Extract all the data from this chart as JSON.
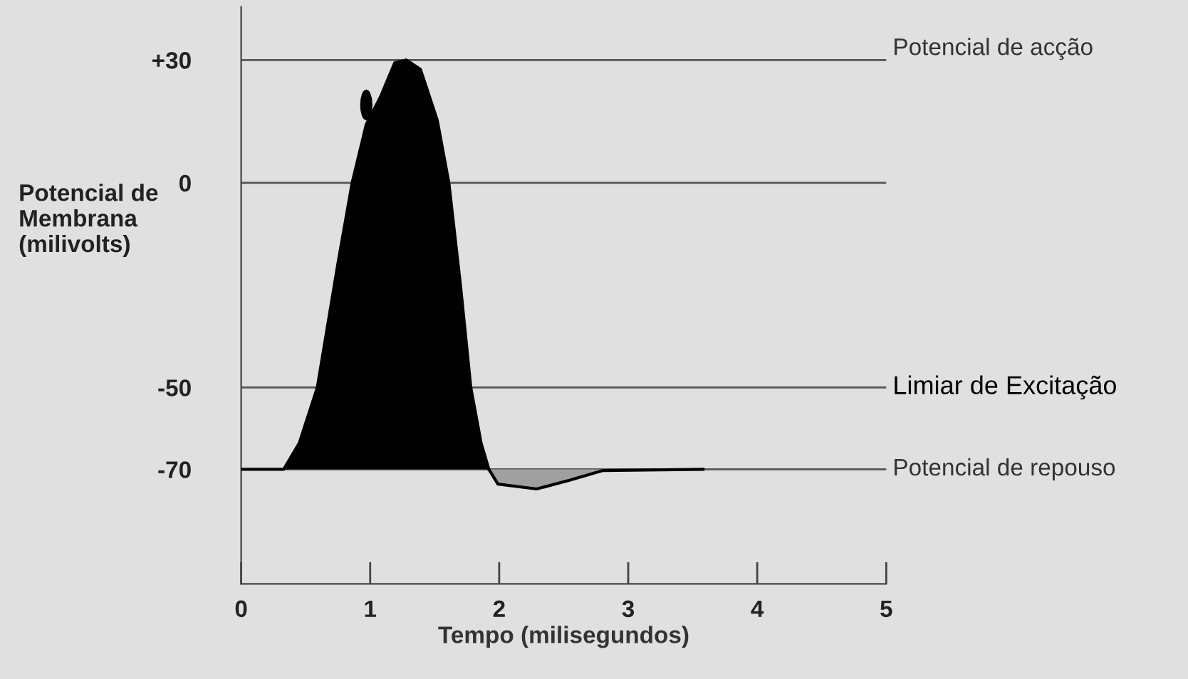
{
  "chart_data": {
    "type": "area",
    "xlabel": "Tempo (milisegundos)",
    "ylabel": "Potencial de\nMembrana\n(milivolts)",
    "xlim": [
      0,
      5
    ],
    "xticks": [
      0,
      1,
      2,
      3,
      4,
      5
    ],
    "ylim": [
      -98,
      43
    ],
    "yticks": [
      {
        "value": 30,
        "label": "+30"
      },
      0,
      -50,
      -70
    ],
    "series": [
      {
        "color": "#000000",
        "x": [
          0,
          0.33,
          0.45,
          0.59,
          0.75,
          0.86,
          0.97,
          1.08,
          1.19,
          1.28,
          1.39,
          1.52,
          1.61,
          1.7,
          1.78,
          1.86,
          1.92
        ],
        "values": [
          -70,
          -70,
          -63.6,
          -50,
          -19.7,
          0,
          14.3,
          21,
          29.3,
          30,
          27.7,
          15.3,
          0,
          -25,
          -50,
          -63.6,
          -70
        ]
      },
      {
        "color": "#a0a0a0",
        "x": [
          1.92,
          1.99,
          2.29,
          2.54,
          2.8,
          3.58
        ],
        "values": [
          -70,
          -73.6,
          -74.8,
          -72.7,
          -70.3,
          -70
        ]
      }
    ],
    "ref_lines": [
      {
        "axis": "y",
        "value": 30,
        "label": "Potencial de acção",
        "color": "#555555"
      },
      {
        "axis": "y",
        "value": 0,
        "color": "#555555"
      },
      {
        "axis": "y",
        "value": -50,
        "label": "Limiar de Excitação",
        "color": "#555555"
      },
      {
        "axis": "y",
        "value": -70,
        "label": "Potencial de repouso",
        "color": "#555555"
      }
    ],
    "grid": false,
    "legend": false
  }
}
